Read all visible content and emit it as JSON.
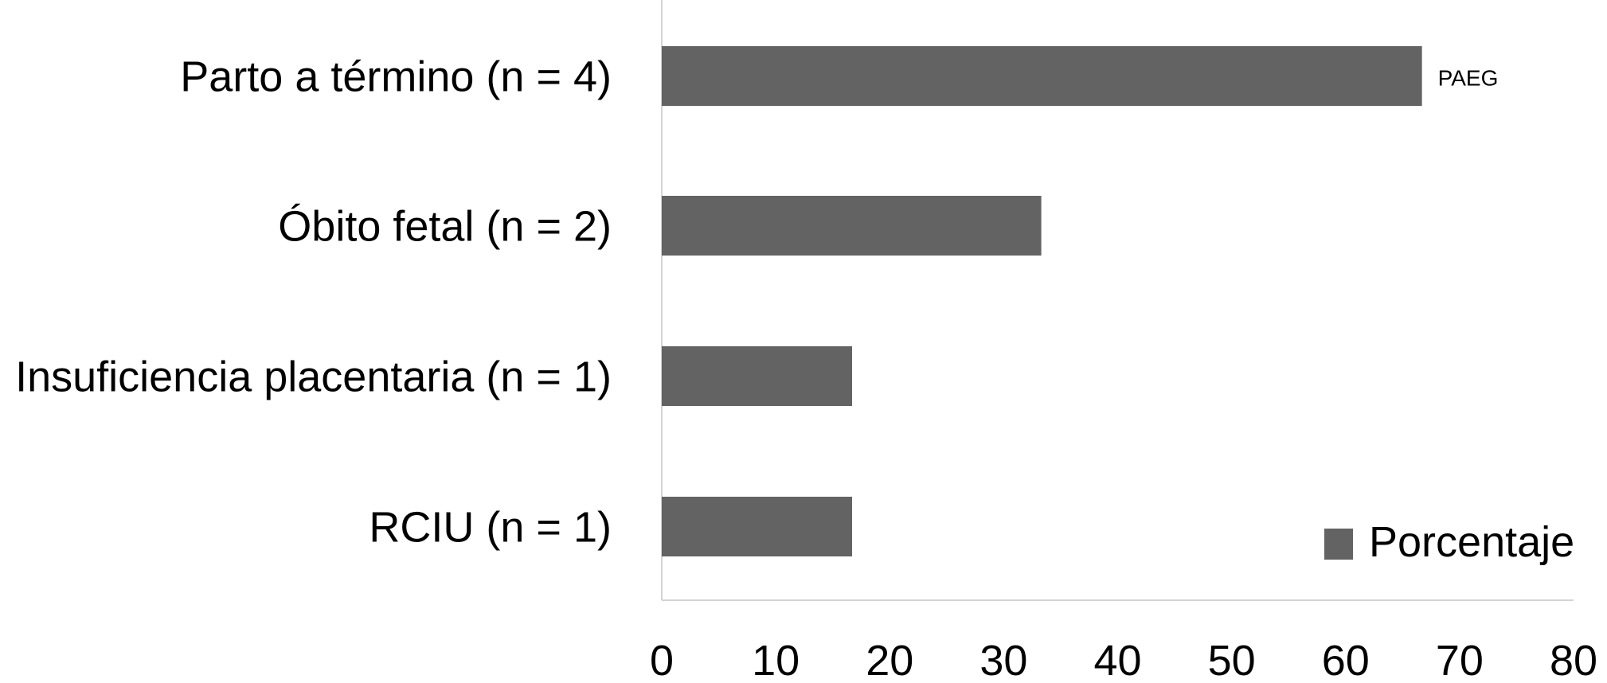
{
  "chart_data": {
    "type": "bar",
    "orientation": "horizontal",
    "categories": [
      "Parto a término (n = 4)",
      "Óbito fetal (n = 2)",
      "Insuficiencia placentaria (n = 1)",
      "RCIU (n = 1)"
    ],
    "series": [
      {
        "name": "Porcentaje",
        "values": [
          66.7,
          33.3,
          16.7,
          16.7
        ],
        "color": "#636363"
      }
    ],
    "annotations": [
      {
        "category": "Parto a término (n = 4)",
        "text": "PAEG"
      }
    ],
    "xlim": [
      0,
      80
    ],
    "xticks": [
      "0",
      "10",
      "20",
      "30",
      "40",
      "50",
      "60",
      "70",
      "80"
    ],
    "grid": false,
    "legend": {
      "placement": "bottom-right",
      "entries": [
        "Porcentaje"
      ]
    },
    "title": "",
    "xlabel": "",
    "ylabel": ""
  }
}
